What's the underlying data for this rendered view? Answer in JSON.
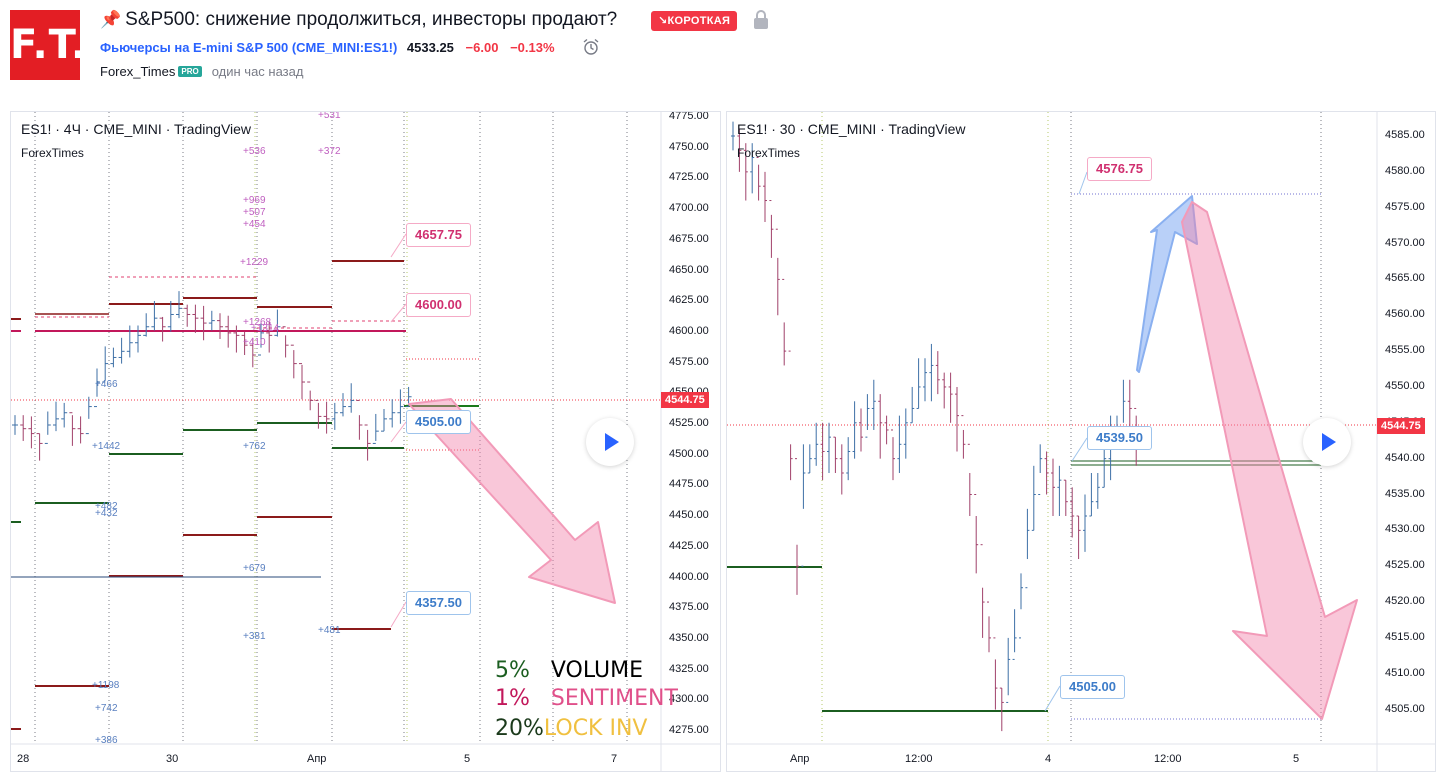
{
  "header": {
    "logo_text": "F.T.",
    "title": "S&P500: снижение продолжиться, инвесторы продают?",
    "badge": "↘КОРОТКАЯ",
    "symbol_link": "Фьючерсы на E-mini S&P 500",
    "symbol_code": "CME_MINI:ES1!",
    "price": "4533.25",
    "change": "−6.00",
    "change_pct": "−0.13%",
    "author": "Forex_Times",
    "pro": "PRO",
    "published": "один час назад",
    "colors": {
      "logo": "#e31e24",
      "badge": "#f23645",
      "link": "#2962ff",
      "negative": "#f23645"
    }
  },
  "left_chart": {
    "legend": "ES1! · 4Ч · CME_MINI · TradingView",
    "sublegend": "ForexTimes",
    "price_axis": [
      "4775.00",
      "4750.00",
      "4725.00",
      "4700.00",
      "4675.00",
      "4650.00",
      "4625.00",
      "4600.00",
      "4575.00",
      "4550.00",
      "4525.00",
      "4500.00",
      "4475.00",
      "4450.00",
      "4425.00",
      "4400.00",
      "4375.00",
      "4350.00",
      "4325.00",
      "4300.00",
      "4275.00"
    ],
    "time_axis": [
      "28",
      "30",
      "Апр",
      "5",
      "7"
    ],
    "last_price": "4544.75",
    "callouts": [
      "4657.75",
      "4600.00",
      "4505.00",
      "4357.50"
    ],
    "volume_labels": [
      "+531",
      "+536",
      "+372",
      "+969",
      "+507",
      "+454",
      "+1229",
      "+1268",
      "+1314",
      "+410",
      "+466",
      "+1442",
      "+762",
      "+482",
      "+432",
      "+679",
      "+381",
      "+481",
      "+1198",
      "+742",
      "+386"
    ],
    "stats": [
      {
        "value": "5%",
        "label": "VOLUME",
        "color_value": "#1b5e20",
        "color_label": "#000000"
      },
      {
        "value": "1%",
        "label": "SENTIMENT",
        "color_value": "#c2185b",
        "color_label": "#e0508a"
      },
      {
        "value": "20%",
        "label": "LOCK INV",
        "color_value": "#1b3a1b",
        "color_label": "#f0c040"
      }
    ]
  },
  "right_chart": {
    "legend": "ES1! · 30 · CME_MINI · TradingView",
    "sublegend": "ForexTimes",
    "price_axis": [
      "4585.00",
      "4580.00",
      "4575.00",
      "4570.00",
      "4565.00",
      "4560.00",
      "4555.00",
      "4550.00",
      "4545.00",
      "4540.00",
      "4535.00",
      "4530.00",
      "4525.00",
      "4520.00",
      "4515.00",
      "4510.00",
      "4505.00"
    ],
    "time_axis": [
      "Апр",
      "12:00",
      "4",
      "12:00",
      "5"
    ],
    "last_price": "4544.75",
    "callouts": [
      "4576.75",
      "4539.50",
      "4505.00"
    ]
  }
}
